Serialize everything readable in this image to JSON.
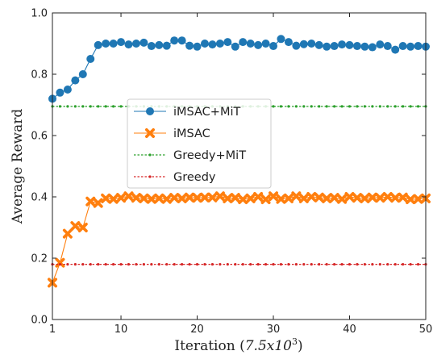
{
  "chart_data": {
    "type": "line",
    "xlabel_main": "Iteration (",
    "xlabel_base": "7.5x10",
    "xlabel_exp": "3",
    "xlabel_close": ")",
    "ylabel": "Average Reward",
    "xlim": [
      1,
      50
    ],
    "ylim": [
      0.0,
      1.0
    ],
    "xticks": [
      1,
      10,
      20,
      30,
      40,
      50
    ],
    "xtick_labels": [
      "1",
      "10",
      "20",
      "30",
      "40",
      "50"
    ],
    "yticks": [
      0.0,
      0.2,
      0.4,
      0.6,
      0.8,
      1.0
    ],
    "ytick_labels": [
      "0.0",
      "0.2",
      "0.4",
      "0.6",
      "0.8",
      "1.0"
    ],
    "grid": false,
    "legend_position": "center-left",
    "x": [
      1,
      2,
      3,
      4,
      5,
      6,
      7,
      8,
      9,
      10,
      11,
      12,
      13,
      14,
      15,
      16,
      17,
      18,
      19,
      20,
      21,
      22,
      23,
      24,
      25,
      26,
      27,
      28,
      29,
      30,
      31,
      32,
      33,
      34,
      35,
      36,
      37,
      38,
      39,
      40,
      41,
      42,
      43,
      44,
      45,
      46,
      47,
      48,
      49,
      50
    ],
    "series": [
      {
        "name": "iMSAC+MiT",
        "color": "#1f77b4",
        "marker": "circle",
        "values": [
          0.72,
          0.74,
          0.75,
          0.78,
          0.8,
          0.85,
          0.895,
          0.9,
          0.9,
          0.905,
          0.897,
          0.9,
          0.903,
          0.892,
          0.895,
          0.893,
          0.91,
          0.91,
          0.893,
          0.89,
          0.9,
          0.897,
          0.9,
          0.905,
          0.89,
          0.905,
          0.9,
          0.895,
          0.9,
          0.892,
          0.915,
          0.905,
          0.893,
          0.898,
          0.9,
          0.895,
          0.89,
          0.892,
          0.897,
          0.895,
          0.892,
          0.89,
          0.888,
          0.897,
          0.892,
          0.88,
          0.892,
          0.89,
          0.892,
          0.89
        ]
      },
      {
        "name": "iMSAC",
        "color": "#ff7f0e",
        "marker": "x",
        "values": [
          0.12,
          0.185,
          0.28,
          0.305,
          0.3,
          0.385,
          0.38,
          0.395,
          0.393,
          0.397,
          0.402,
          0.397,
          0.395,
          0.393,
          0.395,
          0.393,
          0.397,
          0.395,
          0.398,
          0.397,
          0.398,
          0.398,
          0.402,
          0.395,
          0.397,
          0.392,
          0.395,
          0.4,
          0.392,
          0.402,
          0.393,
          0.395,
          0.402,
          0.395,
          0.4,
          0.398,
          0.395,
          0.397,
          0.393,
          0.4,
          0.397,
          0.395,
          0.398,
          0.397,
          0.4,
          0.397,
          0.398,
          0.392,
          0.393,
          0.395
        ]
      },
      {
        "name": "Greedy+MiT",
        "color": "#2ca02c",
        "marker": "dot",
        "values": [
          0.695,
          0.695,
          0.695,
          0.695,
          0.695,
          0.695,
          0.695,
          0.695,
          0.695,
          0.695,
          0.695,
          0.695,
          0.695,
          0.695,
          0.695,
          0.695,
          0.695,
          0.695,
          0.695,
          0.695,
          0.695,
          0.695,
          0.695,
          0.695,
          0.695,
          0.695,
          0.695,
          0.695,
          0.695,
          0.695,
          0.695,
          0.695,
          0.695,
          0.695,
          0.695,
          0.695,
          0.695,
          0.695,
          0.695,
          0.695,
          0.695,
          0.695,
          0.695,
          0.695,
          0.695,
          0.695,
          0.695,
          0.695,
          0.695,
          0.695
        ]
      },
      {
        "name": "Greedy",
        "color": "#d62728",
        "marker": "dot",
        "values": [
          0.18,
          0.18,
          0.18,
          0.18,
          0.18,
          0.18,
          0.18,
          0.18,
          0.18,
          0.18,
          0.18,
          0.18,
          0.18,
          0.18,
          0.18,
          0.18,
          0.18,
          0.18,
          0.18,
          0.18,
          0.18,
          0.18,
          0.18,
          0.18,
          0.18,
          0.18,
          0.18,
          0.18,
          0.18,
          0.18,
          0.18,
          0.18,
          0.18,
          0.18,
          0.18,
          0.18,
          0.18,
          0.18,
          0.18,
          0.18,
          0.18,
          0.18,
          0.18,
          0.18,
          0.18,
          0.18,
          0.18,
          0.18,
          0.18,
          0.18
        ]
      }
    ]
  }
}
